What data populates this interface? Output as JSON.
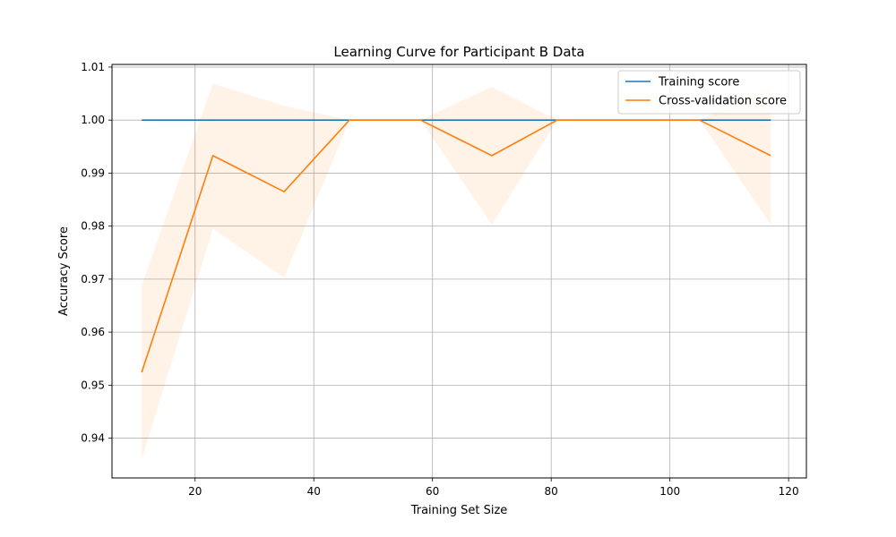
{
  "chart_data": {
    "type": "line",
    "title": "Learning Curve for Participant B Data",
    "xlabel": "Training Set Size",
    "ylabel": "Accuracy Score",
    "xlim": [
      6,
      123
    ],
    "ylim": [
      0.9325,
      1.0105
    ],
    "xticks": [
      20,
      40,
      60,
      80,
      100,
      120
    ],
    "yticks": [
      0.94,
      0.95,
      0.96,
      0.97,
      0.98,
      0.99,
      1.0,
      1.01
    ],
    "ytick_labels": [
      "0.94",
      "0.95",
      "0.96",
      "0.97",
      "0.98",
      "0.99",
      "1.00",
      "1.01"
    ],
    "grid": true,
    "legend_position": "top-right",
    "x": [
      11,
      23,
      35,
      46,
      58,
      70,
      81,
      93,
      105,
      117
    ],
    "series": [
      {
        "name": "Training score",
        "color": "#1f77b4",
        "values": [
          1.0,
          1.0,
          1.0,
          1.0,
          1.0,
          1.0,
          1.0,
          1.0,
          1.0,
          1.0
        ],
        "band_lower": [
          1.0,
          1.0,
          1.0,
          1.0,
          1.0,
          1.0,
          1.0,
          1.0,
          1.0,
          1.0
        ],
        "band_upper": [
          1.0,
          1.0,
          1.0,
          1.0,
          1.0,
          1.0,
          1.0,
          1.0,
          1.0,
          1.0
        ],
        "band_color": "#1f77b4"
      },
      {
        "name": "Cross-validation score",
        "color": "#ff7f0e",
        "values": [
          0.9524,
          0.9933,
          0.9865,
          1.0,
          1.0,
          0.9933,
          1.0,
          1.0,
          1.0,
          0.9933
        ],
        "band_lower": [
          0.936,
          0.9795,
          0.9703,
          1.0,
          1.0,
          0.9803,
          1.0,
          1.0,
          1.0,
          0.9803
        ],
        "band_upper": [
          0.9688,
          1.0069,
          1.0027,
          1.0,
          1.0,
          1.0063,
          1.0,
          1.0,
          1.0,
          1.0063
        ],
        "band_color": "#ff7f0e"
      }
    ]
  }
}
